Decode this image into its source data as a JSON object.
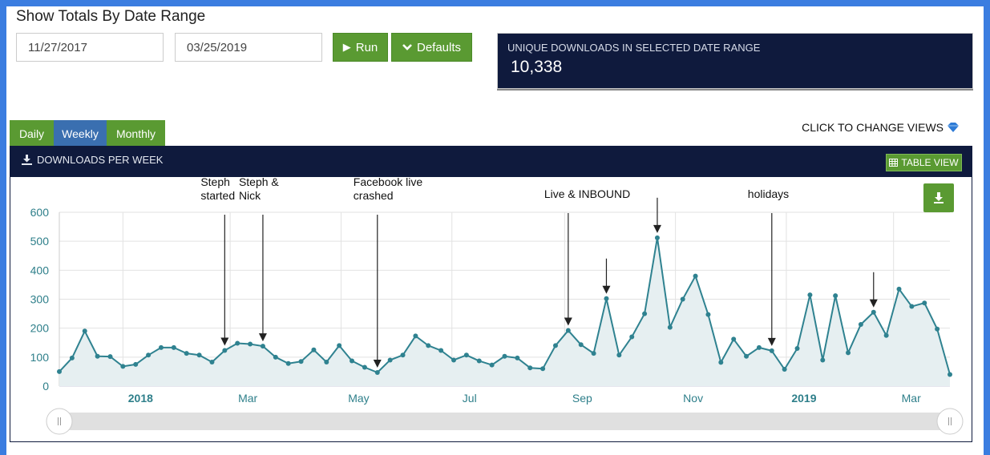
{
  "header": {
    "title": "Show Totals By Date Range",
    "start_date": "11/27/2017",
    "end_date": "03/25/2019",
    "run_label": "Run",
    "defaults_label": "Defaults"
  },
  "stat": {
    "label": "UNIQUE DOWNLOADS IN SELECTED DATE RANGE",
    "value": "10,338"
  },
  "tabs": [
    {
      "label": "Daily",
      "color": "#5a9a32"
    },
    {
      "label": "Weekly",
      "color": "#3a6fb0",
      "active": true
    },
    {
      "label": "Monthly",
      "color": "#5a9a32"
    }
  ],
  "change_views": "CLICK TO CHANGE VIEWS",
  "chart_header": {
    "title": "DOWNLOADS PER WEEK",
    "table_view": "TABLE VIEW"
  },
  "colors": {
    "line": "#2f8290",
    "area": "#e6eff1",
    "navy": "#0f1a3d",
    "green": "#5a9a32"
  },
  "chart_data": {
    "type": "area",
    "title": "",
    "ylim": [
      0,
      600
    ],
    "yticks": [
      0,
      100,
      200,
      300,
      400,
      500,
      600
    ],
    "grid": true,
    "start_date": "2017-11-27",
    "x_step_days": 7,
    "series": [
      {
        "values": [
          50,
          97,
          190,
          103,
          102,
          68,
          75,
          107,
          133,
          133,
          113,
          107,
          83,
          123,
          148,
          145,
          138,
          100,
          78,
          85,
          125,
          83,
          140,
          87,
          65,
          47,
          90,
          107,
          173,
          140,
          123,
          90,
          107,
          87,
          73,
          103,
          97,
          63,
          60,
          140,
          192,
          143,
          113,
          302,
          107,
          170,
          250,
          512,
          203,
          300,
          380,
          247,
          82,
          162,
          103,
          133,
          122,
          58,
          130,
          315,
          90,
          312,
          115,
          213,
          255,
          175,
          335,
          275,
          287,
          197,
          40
        ]
      }
    ],
    "x_tick_labels": [
      {
        "label": "2018",
        "date": "2018-01-01",
        "bold": true
      },
      {
        "label": "Mar",
        "date": "2018-03-01"
      },
      {
        "label": "May",
        "date": "2018-05-01"
      },
      {
        "label": "Jul",
        "date": "2018-07-01"
      },
      {
        "label": "Sep",
        "date": "2018-09-01"
      },
      {
        "label": "Nov",
        "date": "2018-11-01"
      },
      {
        "label": "2019",
        "date": "2019-01-01",
        "bold": true
      },
      {
        "label": "Mar",
        "date": "2019-03-01"
      }
    ],
    "annotations": [
      {
        "lines": [
          "Steph",
          "started"
        ],
        "point_index": 13
      },
      {
        "lines": [
          "Steph &",
          "Nick"
        ],
        "point_index": 16
      },
      {
        "lines": [
          "Facebook live",
          "crashed"
        ],
        "point_index": 25
      },
      {
        "lines": [
          "Live & INBOUND"
        ],
        "point_index": 40
      },
      {
        "lines": [],
        "point_index": 43
      },
      {
        "lines": [],
        "point_index": 47
      },
      {
        "lines": [
          "holidays"
        ],
        "point_index": 56
      },
      {
        "lines": [],
        "point_index": 64
      }
    ]
  }
}
